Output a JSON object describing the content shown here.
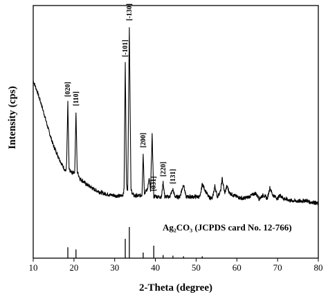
{
  "chart_data": {
    "type": "line",
    "xlabel": "2-Theta (degree)",
    "ylabel": "Intensity (cps)",
    "xlim": [
      10,
      80
    ],
    "xticks": [
      10,
      20,
      30,
      40,
      50,
      60,
      70,
      80
    ],
    "grid": false,
    "pattern": {
      "x": [
        10,
        11,
        12,
        13,
        14,
        15,
        16,
        17,
        18,
        18.2,
        18.5,
        18.8,
        19.5,
        20.2,
        20.5,
        20.8,
        21.5,
        23,
        25,
        27,
        29,
        30.5,
        31,
        31.5,
        32,
        32.3,
        32.6,
        32.9,
        33.2,
        33.6,
        34,
        34.5,
        35,
        36,
        36.7,
        37,
        37.3,
        38,
        38.5,
        38.8,
        39.2,
        39.6,
        40,
        40.5,
        41.5,
        41.9,
        42.3,
        43.5,
        44.3,
        44.8,
        46,
        46.9,
        47.5,
        49,
        51,
        51.5,
        53,
        54,
        54.6,
        55.2,
        56,
        56.4,
        57,
        57.6,
        58.2,
        60,
        61.5,
        63,
        64.6,
        65.5,
        66.5,
        67.5,
        68.1,
        68.8,
        70,
        70.6,
        71.5,
        73,
        75,
        77,
        78,
        79,
        80
      ],
      "y": [
        70,
        64,
        57,
        49,
        41,
        34,
        29,
        24,
        20,
        24,
        58,
        21,
        19,
        20,
        53,
        20,
        16,
        13,
        10,
        8,
        7,
        6.5,
        6.5,
        6.5,
        7,
        10,
        80,
        12,
        10,
        100,
        10,
        7,
        6.5,
        6.5,
        7,
        30,
        8,
        10,
        16,
        9,
        40,
        6,
        6.5,
        6,
        6,
        14,
        6,
        6,
        10,
        6,
        6,
        13,
        6,
        6,
        6,
        13,
        6,
        5,
        12,
        6,
        9,
        16,
        8,
        12,
        8,
        6,
        5,
        6,
        8,
        5,
        7,
        5,
        11,
        7,
        5,
        7,
        5,
        4,
        3.5,
        4,
        3,
        3,
        2
      ]
    },
    "peak_labels": [
      {
        "x": 18.5,
        "label": "[020]"
      },
      {
        "x": 20.5,
        "label": "[110]"
      },
      {
        "x": 32.6,
        "label": "[-101]"
      },
      {
        "x": 33.6,
        "label": "[-130]"
      },
      {
        "x": 37.0,
        "label": "[200]"
      },
      {
        "x": 39.6,
        "label": "[031]"
      },
      {
        "x": 41.9,
        "label": "[220]"
      },
      {
        "x": 44.3,
        "label": "[131]"
      }
    ],
    "reference": {
      "label": "Ag₂CO₃ (JCPDS card No. 12-766)",
      "sticks": [
        {
          "x": 18.5,
          "h": 35
        },
        {
          "x": 20.5,
          "h": 28
        },
        {
          "x": 32.6,
          "h": 62
        },
        {
          "x": 33.6,
          "h": 100
        },
        {
          "x": 37.0,
          "h": 18
        },
        {
          "x": 39.6,
          "h": 40
        },
        {
          "x": 41.9,
          "h": 10
        },
        {
          "x": 44.3,
          "h": 8
        },
        {
          "x": 46.9,
          "h": 6
        },
        {
          "x": 51.5,
          "h": 6
        }
      ]
    }
  }
}
